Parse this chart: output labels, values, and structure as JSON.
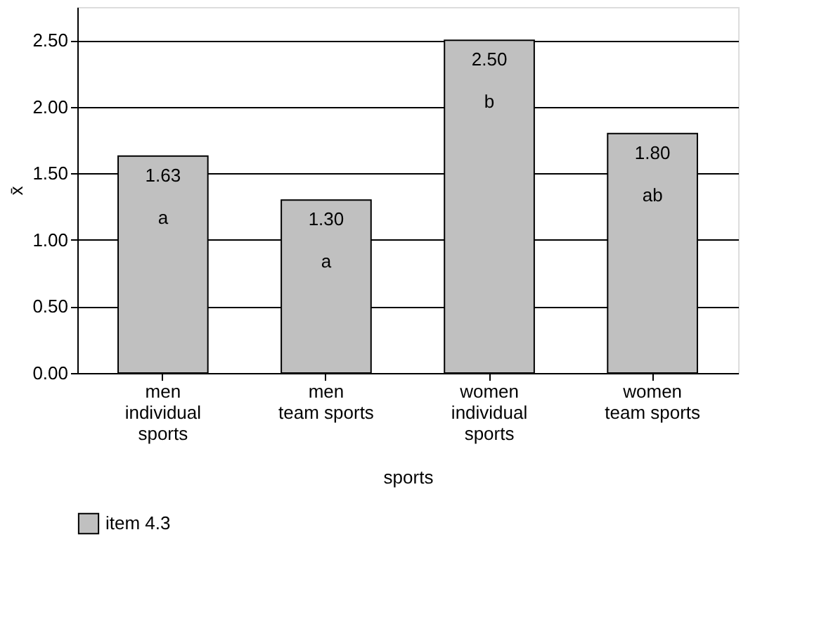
{
  "chart_data": {
    "type": "bar",
    "categories": [
      "men\nindividual\nsports",
      "men\nteam sports",
      "women\nindividual\nsports",
      "women\nteam sports"
    ],
    "series": [
      {
        "name": "item 4.3",
        "color": "#c0c0c0",
        "values": [
          1.63,
          1.3,
          2.5,
          1.8
        ]
      }
    ],
    "xlabel": "sports",
    "ylabel": "x̄",
    "ylim": [
      0,
      2.75
    ],
    "yticks": [
      {
        "value": 0,
        "label": "0.00"
      },
      {
        "value": 0.5,
        "label": "0.50"
      },
      {
        "value": 1,
        "label": "1.00"
      },
      {
        "value": 1.5,
        "label": "1.50"
      },
      {
        "value": 2,
        "label": "2.00"
      },
      {
        "value": 2.5,
        "label": "2.50"
      }
    ],
    "value_labels": [
      "1.63",
      "1.30",
      "2.50",
      "1.80"
    ],
    "annotations": [
      {
        "text": "a",
        "x": "men\nindividual\nsports",
        "y": 1.63
      },
      {
        "text": "a",
        "x": "men\nteam sports",
        "y": 1.3
      },
      {
        "text": "b",
        "x": "women\nindividual\nsports",
        "y": 2.5
      },
      {
        "text": "ab",
        "x": "women\nteam sports",
        "y": 1.8
      }
    ],
    "grid": "y",
    "legend": "bottom"
  }
}
